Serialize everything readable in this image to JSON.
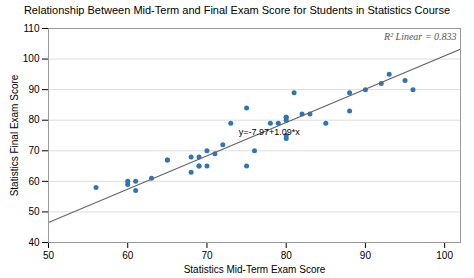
{
  "chart_data": {
    "type": "scatter",
    "title": "Relationship Between Mid-Term and Final Exam Score for Students in Statistics Course",
    "xlabel": "Statistics Mid-Term Exam Score",
    "ylabel": "Statistics Final Exam Score",
    "xlim": [
      50,
      102
    ],
    "ylim": [
      40,
      110
    ],
    "xticks": [
      50,
      60,
      70,
      80,
      90,
      100
    ],
    "yticks": [
      40,
      50,
      60,
      70,
      80,
      90,
      100,
      110
    ],
    "grid": "y",
    "series": [
      {
        "type": "scatter",
        "color": "#2E75B6",
        "x": [
          56,
          60,
          60,
          61,
          61,
          63,
          65,
          65,
          68,
          68,
          69,
          69,
          69,
          70,
          70,
          71,
          72,
          73,
          75,
          75,
          76,
          78,
          79,
          80,
          80,
          80,
          80,
          80,
          81,
          82,
          83,
          85,
          88,
          88,
          90,
          92,
          93,
          95,
          96
        ],
        "values": [
          58,
          59,
          60,
          60,
          57,
          61,
          67,
          67,
          68,
          63,
          68,
          65,
          65,
          70,
          65,
          69,
          72,
          79,
          84,
          65,
          70,
          79,
          79,
          81,
          81,
          80,
          75,
          74,
          89,
          82,
          82,
          79,
          89,
          83,
          90,
          92,
          95,
          93,
          90
        ]
      },
      {
        "type": "line",
        "color": "#666666",
        "x": [
          50,
          102
        ],
        "values": [
          46.53,
          103.21
        ]
      }
    ],
    "annotations": [
      {
        "text": "R² Linear = 0.833"
      },
      {
        "text": "y=-7.97+1.09*x",
        "x": 74,
        "y": 76
      }
    ]
  }
}
